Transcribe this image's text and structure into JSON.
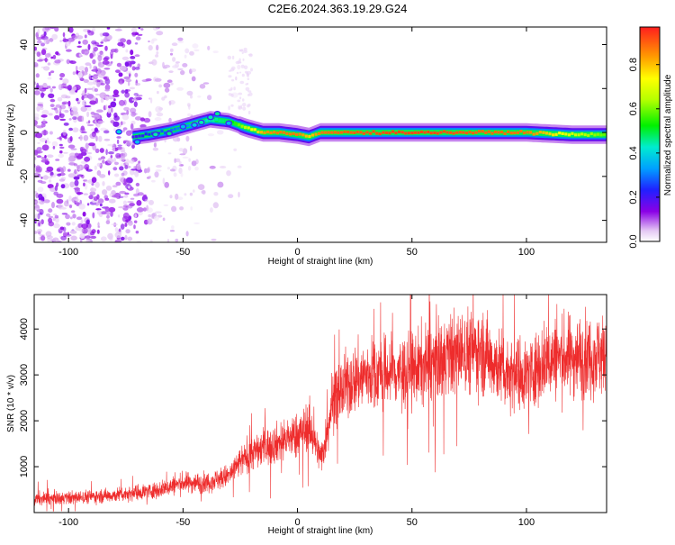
{
  "title": "C2E6.2024.363.19.29.G24",
  "chart_data": [
    {
      "type": "heatmap",
      "xlabel": "Height of straight line (km)",
      "ylabel": "Frequency (Hz)",
      "xlim": [
        -115,
        135
      ],
      "ylim": [
        -50,
        48
      ],
      "x_ticks": [
        -100,
        -50,
        0,
        50,
        100
      ],
      "y_ticks": [
        -40,
        -20,
        0,
        20,
        40
      ],
      "colorbar": {
        "label": "Normalized spectral amplitude",
        "range": [
          0,
          0.97
        ],
        "ticks": [
          0.0,
          0.2,
          0.4,
          0.6,
          0.8
        ]
      },
      "ridge": {
        "x": [
          -72,
          -65,
          -55,
          -45,
          -38,
          -30,
          -22,
          -15,
          -8,
          0,
          5,
          10,
          20,
          40,
          60,
          80,
          100,
          120,
          135
        ],
        "frequency": [
          -2,
          -1,
          1,
          4,
          6,
          5,
          2,
          0,
          0,
          -1,
          -2,
          0,
          0,
          0,
          0,
          0,
          0,
          -1,
          -1
        ],
        "amplitude": [
          0.2,
          0.25,
          0.3,
          0.35,
          0.45,
          0.5,
          0.7,
          0.85,
          0.9,
          0.9,
          0.8,
          0.9,
          0.92,
          0.95,
          0.95,
          0.92,
          0.9,
          0.7,
          0.6
        ]
      },
      "grid": false
    },
    {
      "type": "line",
      "xlabel": "Height of straight line (km)",
      "ylabel": "SNR (10 * v/v)",
      "xlim": [
        -115,
        135
      ],
      "ylim": [
        0,
        4750
      ],
      "x_ticks": [
        -100,
        -50,
        0,
        50,
        100
      ],
      "y_ticks": [
        1000,
        2000,
        3000,
        4000
      ],
      "series": [
        {
          "color": "#ee2c2c",
          "x": [
            -115,
            -100,
            -80,
            -60,
            -50,
            -40,
            -30,
            -25,
            -20,
            -10,
            0,
            5,
            10,
            12,
            15,
            20,
            25,
            30,
            40,
            50,
            60,
            70,
            80,
            90,
            100,
            110,
            120,
            135
          ],
          "y": [
            300,
            320,
            380,
            500,
            650,
            650,
            800,
            1100,
            1300,
            1500,
            1700,
            1900,
            1200,
            1500,
            2400,
            2700,
            2900,
            3000,
            3050,
            3100,
            3300,
            3500,
            3550,
            3100,
            3000,
            3350,
            3400,
            3450
          ]
        }
      ],
      "grid": false
    }
  ]
}
